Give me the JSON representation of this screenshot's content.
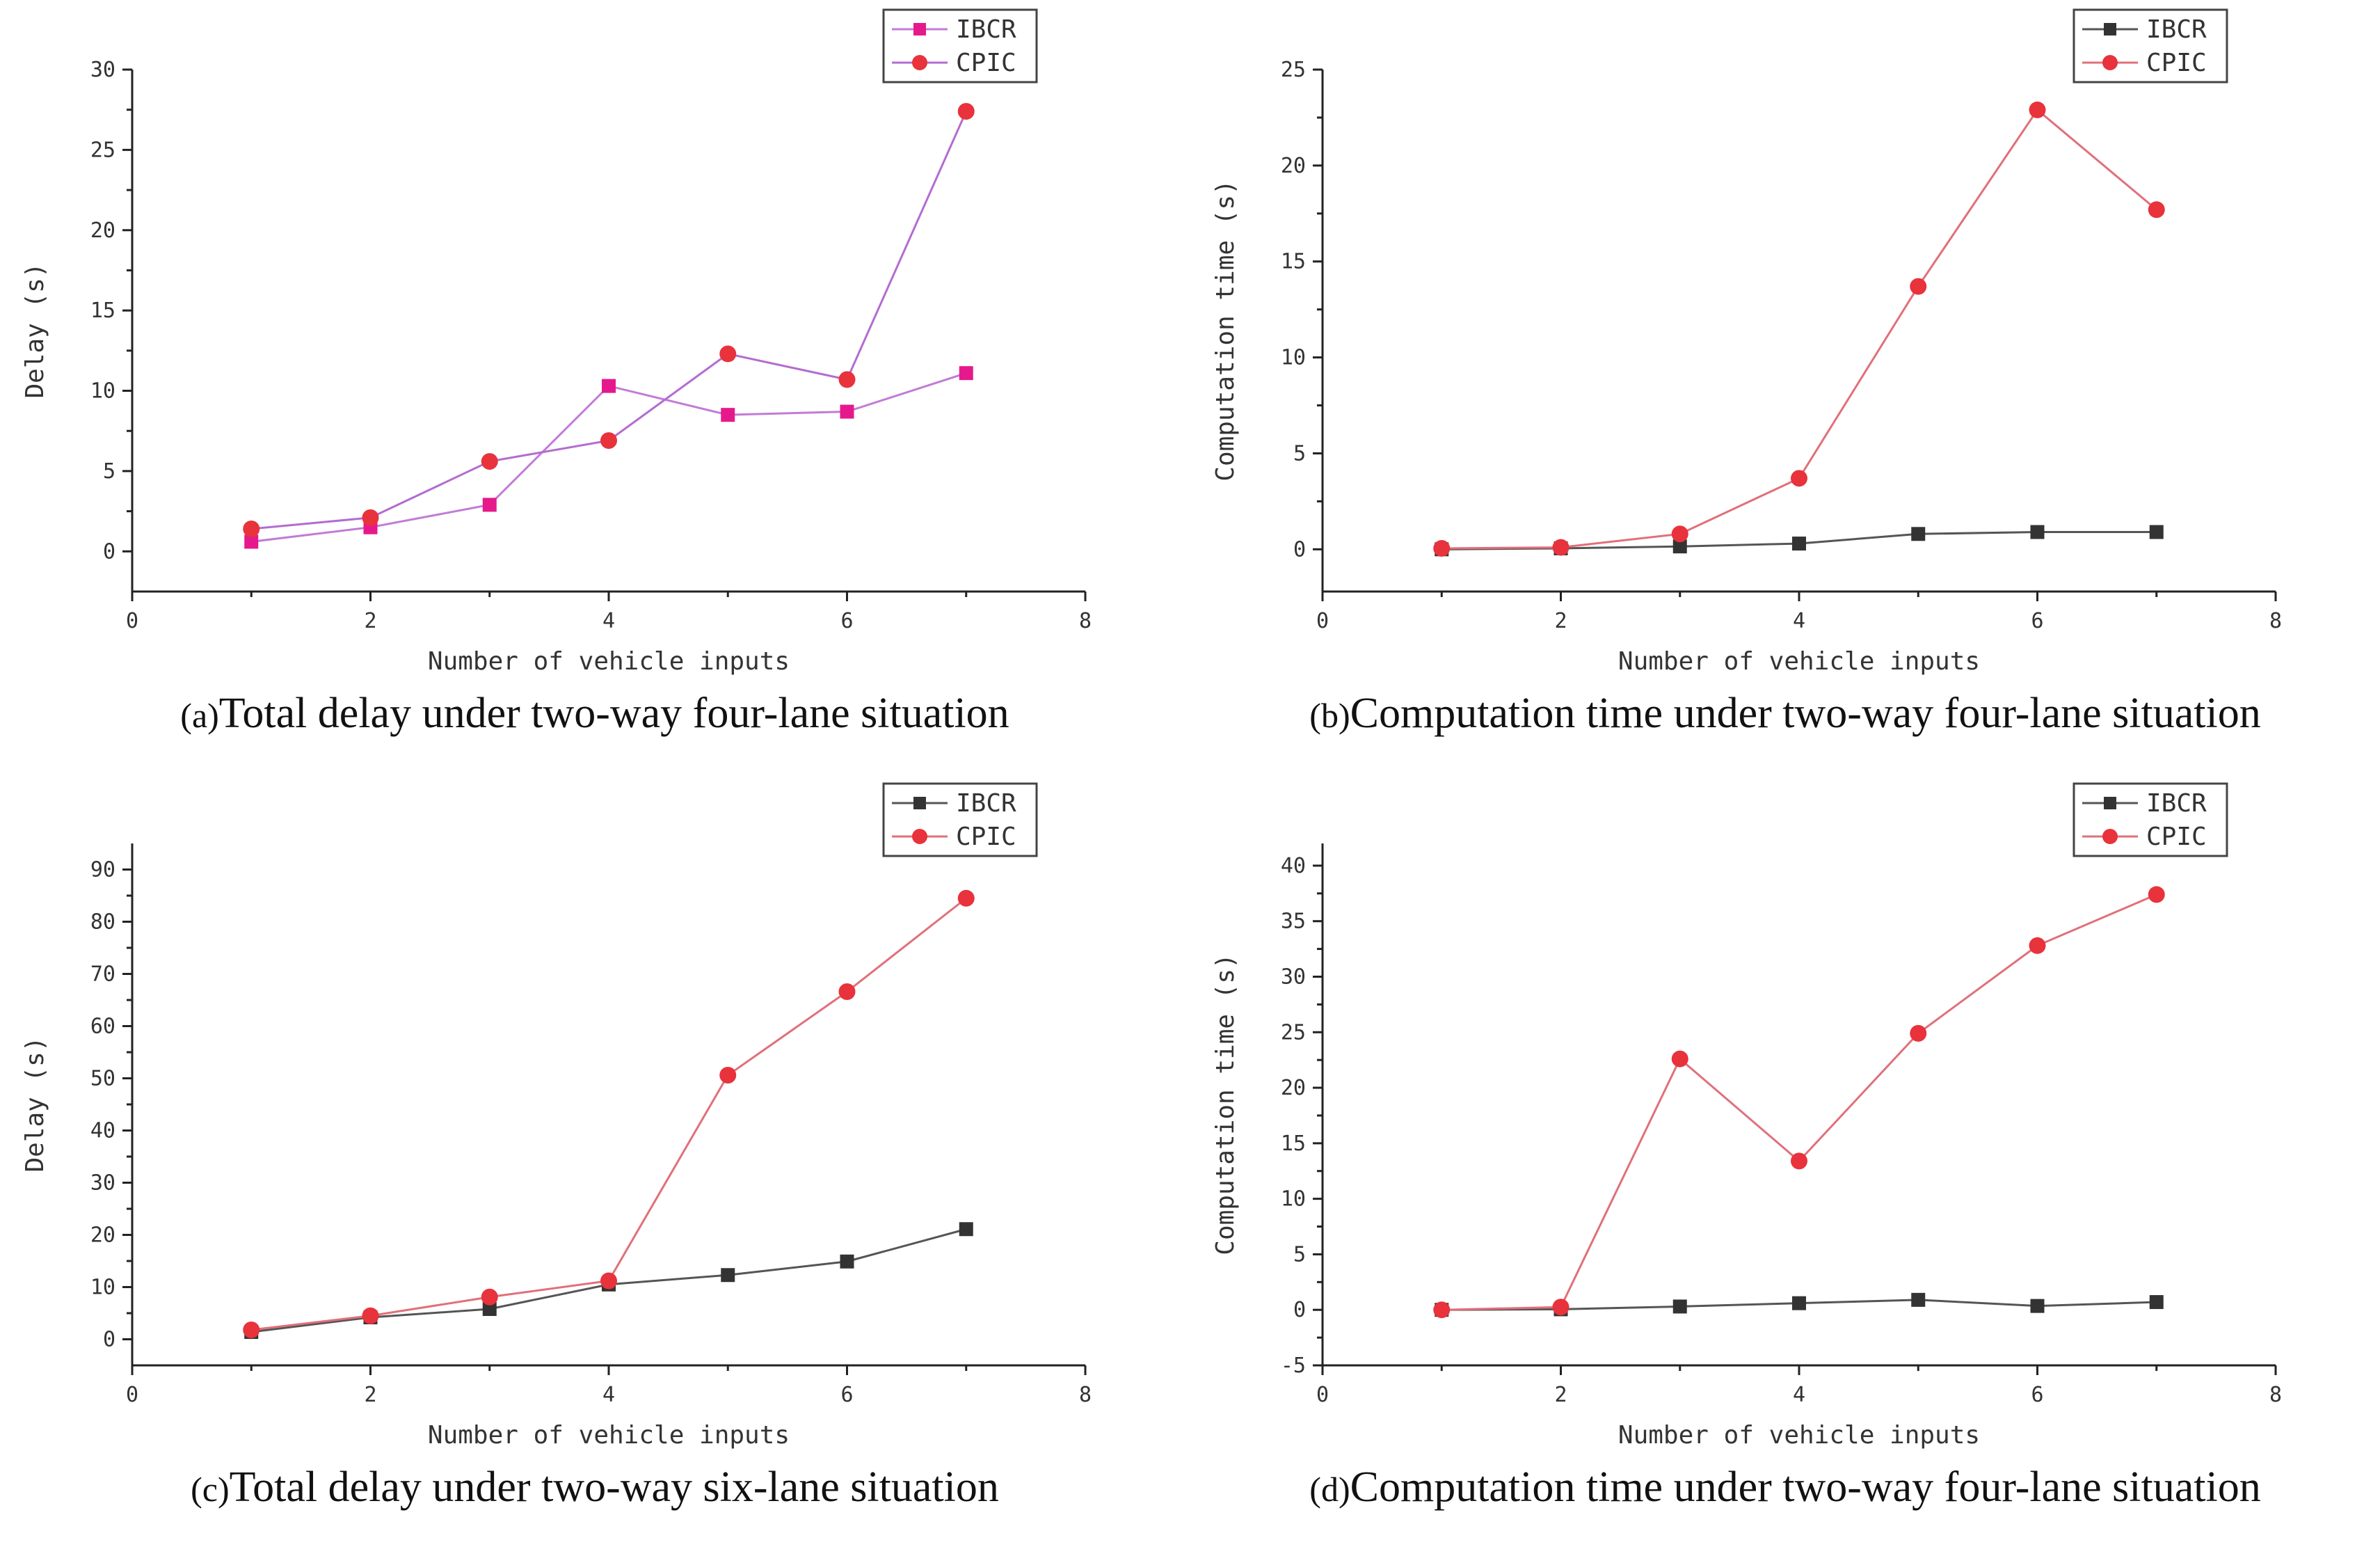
{
  "chart_data": [
    {
      "type": "line",
      "panel_id": "a",
      "caption_prefix": "(a)",
      "caption": "Total delay under two-way four-lane situation",
      "xlabel": "Number of vehicle inputs",
      "ylabel": "Delay (s)",
      "xlim": [
        0,
        8
      ],
      "ylim": [
        -2.5,
        30
      ],
      "xticks": [
        0,
        2,
        4,
        6,
        8
      ],
      "yticks": [
        0,
        5,
        10,
        15,
        20,
        25,
        30
      ],
      "legend_position": "top-right",
      "x": [
        1,
        2,
        3,
        4,
        5,
        6,
        7
      ],
      "series": [
        {
          "name": "IBCR",
          "marker": "square",
          "line_color": "#c27bd6",
          "marker_color": "#e6198c",
          "values": [
            0.6,
            1.5,
            2.9,
            10.3,
            8.5,
            8.7,
            11.1
          ]
        },
        {
          "name": "CPIC",
          "marker": "circle",
          "line_color": "#b46cd0",
          "marker_color": "#e8323c",
          "values": [
            1.4,
            2.1,
            5.6,
            6.9,
            12.3,
            10.7,
            27.4
          ]
        }
      ]
    },
    {
      "type": "line",
      "panel_id": "b",
      "caption_prefix": "(b)",
      "caption": "Computation time under two-way four-lane situation",
      "xlabel": "Number of vehicle inputs",
      "ylabel": "Computation time (s)",
      "xlim": [
        0,
        8
      ],
      "ylim": [
        -2.2,
        25
      ],
      "xticks": [
        0,
        2,
        4,
        6,
        8
      ],
      "yticks": [
        0,
        5,
        10,
        15,
        20,
        25
      ],
      "legend_position": "top-right",
      "x": [
        1,
        2,
        3,
        4,
        5,
        6,
        7
      ],
      "series": [
        {
          "name": "IBCR",
          "marker": "square",
          "line_color": "#555555",
          "marker_color": "#333333",
          "values": [
            0.0,
            0.05,
            0.15,
            0.3,
            0.8,
            0.9,
            0.9
          ]
        },
        {
          "name": "CPIC",
          "marker": "circle",
          "line_color": "#e0707a",
          "marker_color": "#e8323c",
          "values": [
            0.05,
            0.1,
            0.8,
            3.7,
            13.7,
            22.9,
            17.7
          ]
        }
      ]
    },
    {
      "type": "line",
      "panel_id": "c",
      "caption_prefix": "(c)",
      "caption": "Total delay under two-way six-lane situation",
      "xlabel": "Number of vehicle inputs",
      "ylabel": "Delay (s)",
      "xlim": [
        0,
        8
      ],
      "ylim": [
        -5,
        95
      ],
      "xticks": [
        0,
        2,
        4,
        6,
        8
      ],
      "yticks": [
        0,
        10,
        20,
        30,
        40,
        50,
        60,
        70,
        80,
        90
      ],
      "legend_position": "top-right",
      "x": [
        1,
        2,
        3,
        4,
        5,
        6,
        7
      ],
      "series": [
        {
          "name": "IBCR",
          "marker": "square",
          "line_color": "#555555",
          "marker_color": "#333333",
          "values": [
            1.4,
            4.2,
            5.8,
            10.5,
            12.3,
            14.9,
            21.1
          ]
        },
        {
          "name": "CPIC",
          "marker": "circle",
          "line_color": "#e0707a",
          "marker_color": "#e8323c",
          "values": [
            1.8,
            4.5,
            8.1,
            11.2,
            50.6,
            66.6,
            84.5
          ]
        }
      ]
    },
    {
      "type": "line",
      "panel_id": "d",
      "caption_prefix": "(d)",
      "caption": "Computation time under two-way four-lane situation",
      "xlabel": "Number of vehicle inputs",
      "ylabel": "Computation time (s)",
      "xlim": [
        0,
        8
      ],
      "ylim": [
        -5,
        42
      ],
      "xticks": [
        0,
        2,
        4,
        6,
        8
      ],
      "yticks": [
        -5,
        0,
        5,
        10,
        15,
        20,
        25,
        30,
        35,
        40
      ],
      "legend_position": "top-right",
      "x": [
        1,
        2,
        3,
        4,
        5,
        6,
        7
      ],
      "series": [
        {
          "name": "IBCR",
          "marker": "square",
          "line_color": "#555555",
          "marker_color": "#333333",
          "values": [
            0.0,
            0.05,
            0.3,
            0.6,
            0.9,
            0.35,
            0.7
          ]
        },
        {
          "name": "CPIC",
          "marker": "circle",
          "line_color": "#e0707a",
          "marker_color": "#e8323c",
          "values": [
            0.0,
            0.25,
            22.6,
            13.4,
            24.9,
            32.8,
            37.4
          ]
        }
      ]
    }
  ]
}
